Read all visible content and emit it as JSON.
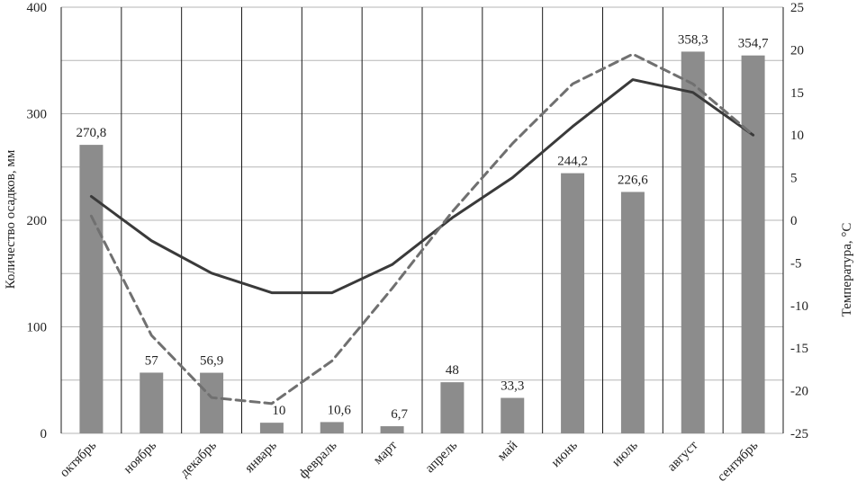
{
  "chart_data": {
    "type": "bar",
    "categories": [
      "октябрь",
      "ноябрь",
      "декабрь",
      "январь",
      "февраль",
      "март",
      "апрель",
      "май",
      "июнь",
      "июль",
      "август",
      "сентябрь"
    ],
    "ylabel": "Количество осадков, мм",
    "y2label": "Температура, °С",
    "ylim": [
      0,
      400
    ],
    "y2lim": [
      -25,
      25
    ],
    "y_ticks": [
      0,
      100,
      200,
      300,
      400
    ],
    "y2_ticks": [
      -25,
      -20,
      -15,
      -10,
      -5,
      0,
      5,
      10,
      15,
      20,
      25
    ],
    "grid": true,
    "bars": {
      "values": [
        270.8,
        57,
        56.9,
        10,
        10.6,
        6.7,
        48,
        33.3,
        244.2,
        226.6,
        358.3,
        354.7
      ],
      "labels": [
        "270,8",
        "57",
        "56,9",
        "10",
        "10,6",
        "6,7",
        "48",
        "33,3",
        "244,2",
        "226,6",
        "358,3",
        "354,7"
      ],
      "color": "#8c8c8c"
    },
    "lines": [
      {
        "style": "solid",
        "color": "#3a3a3a",
        "axis": "right",
        "values": [
          2.8,
          -2.4,
          -6.2,
          -8.5,
          -8.5,
          -5.2,
          0.3,
          5.0,
          11.0,
          16.5,
          15.0,
          10.0
        ]
      },
      {
        "style": "dashed",
        "color": "#707070",
        "axis": "right",
        "values": [
          0.5,
          -13.5,
          -20.8,
          -21.5,
          -16.5,
          -8.0,
          1.0,
          9.0,
          16.0,
          19.5,
          16.0,
          10.0
        ]
      }
    ]
  }
}
